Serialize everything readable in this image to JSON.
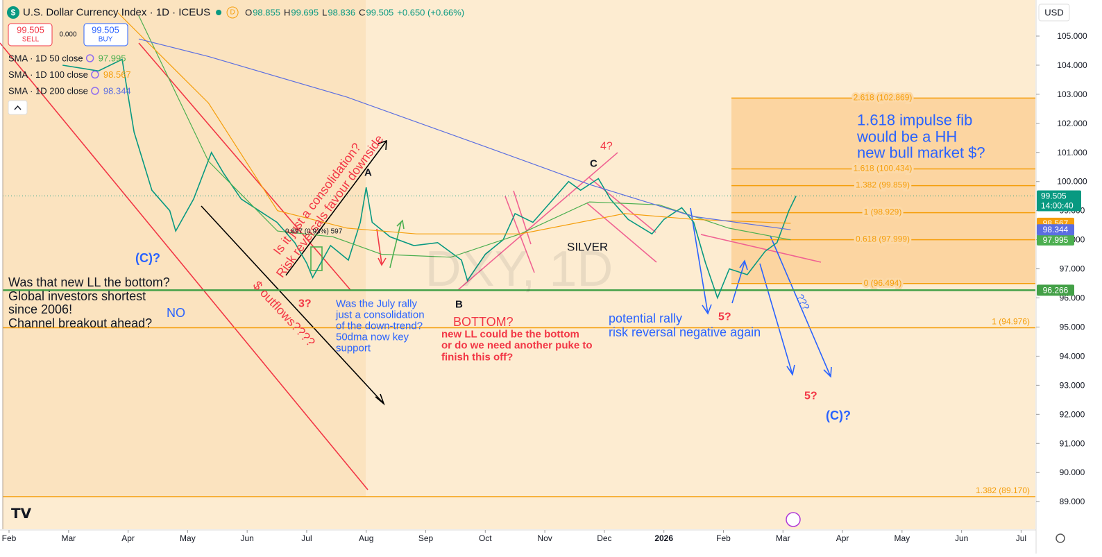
{
  "chart_data": {
    "type": "line",
    "title": "U.S. Dollar Currency Index · 1D · ICEUS",
    "interval_badge": "D",
    "ohlc": [
      {
        "label": "O",
        "value": 98.855
      },
      {
        "label": "H",
        "value": 99.695
      },
      {
        "label": "L",
        "value": 98.836
      },
      {
        "label": "C",
        "value": 99.505
      }
    ],
    "change": "+0.650 (+0.66%)",
    "trade": {
      "sell_price": 99.505,
      "sell": "SELL",
      "spread": "0.000",
      "buy_price": 99.505,
      "buy": "BUY"
    },
    "currency": "USD",
    "last_price": 99.505,
    "clock": "14:00:40",
    "support_level": 96.266,
    "watermark": "DXY, 1D",
    "series": [
      {
        "color": "#089981",
        "x": [
          0.9,
          1.5,
          1.9,
          2.1,
          2.4,
          2.7,
          2.8,
          3.1,
          3.4,
          3.6,
          3.9,
          4.2,
          4.5,
          4.8,
          5.0,
          5.1,
          5.4,
          5.7,
          5.9,
          6.0,
          6.1,
          6.4,
          6.8,
          7.2,
          7.6,
          7.7,
          8.0,
          8.3,
          8.5,
          8.8,
          9.1,
          9.4,
          9.6,
          9.9,
          10.1,
          10.4,
          10.8,
          11.0,
          11.3,
          11.5,
          11.7,
          11.9,
          12.1,
          12.4,
          12.7,
          12.9,
          13.1,
          13.22
        ],
        "values": [
          104.0,
          103.8,
          104.2,
          101.7,
          99.7,
          99.0,
          98.3,
          99.4,
          101.0,
          100.3,
          99.4,
          99.0,
          98.6,
          97.9,
          97.2,
          96.7,
          97.8,
          97.3,
          98.6,
          99.8,
          98.6,
          98.1,
          97.8,
          97.9,
          97.3,
          96.6,
          97.5,
          98.0,
          98.9,
          98.6,
          99.3,
          100.0,
          99.7,
          100.1,
          99.4,
          98.7,
          98.2,
          98.7,
          99.1,
          98.6,
          97.2,
          96.0,
          97.0,
          96.8,
          97.6,
          97.9,
          99.0,
          99.505
        ]
      },
      {
        "name": "SMA · 1D 50 close",
        "color": "#4caf50",
        "last": 97.995,
        "x": [
          2.18,
          3.35,
          4.51,
          5.44,
          6.26,
          7.42,
          8.59,
          9.75,
          10.92,
          12.09,
          13.13
        ],
        "values": [
          105.7,
          100.7,
          98.3,
          98.1,
          97.5,
          97.4,
          98.2,
          99.3,
          99.2,
          98.4,
          97.995
        ]
      },
      {
        "name": "SMA · 1D 100 close",
        "color": "#f59e0b",
        "last": 98.567,
        "x": [
          1.83,
          3.35,
          4.51,
          5.68,
          6.84,
          8.59,
          10.34,
          11.5,
          13.13
        ],
        "values": [
          105.8,
          102.7,
          99.0,
          98.4,
          98.2,
          98.2,
          98.9,
          98.7,
          98.567
        ]
      },
      {
        "name": "SMA · 1D 200 close",
        "color": "#5b6ee1",
        "last": 98.344,
        "x": [
          2.18,
          3.35,
          5.68,
          8.0,
          9.75,
          11.5,
          13.13
        ],
        "values": [
          104.9,
          104.3,
          102.9,
          101.2,
          99.9,
          98.8,
          98.344
        ]
      }
    ],
    "fib": [
      {
        "label": "2.618 (102.869)",
        "value": 102.869
      },
      {
        "label": "1.618 (100.434)",
        "value": 100.434
      },
      {
        "label": "1.382 (99.859)",
        "value": 99.859
      },
      {
        "label": "1 (98.929)",
        "value": 98.929
      },
      {
        "label": "0.618 (97.999)",
        "value": 97.999
      },
      {
        "label": "0 (96.494)",
        "value": 96.494
      }
    ],
    "extension_levels": [
      {
        "label": "1 (94.976)",
        "value": 94.976
      },
      {
        "label": "1.382 (89.170)",
        "value": 89.17
      }
    ],
    "ylim": [
      88.05,
      106.24
    ],
    "yticks": [
      {
        "value": 89,
        "label": "89.000"
      },
      {
        "value": 90,
        "label": "90.000"
      },
      {
        "value": 91,
        "label": "91.000"
      },
      {
        "value": 92,
        "label": "92.000"
      },
      {
        "value": 93,
        "label": "93.000"
      },
      {
        "value": 94,
        "label": "94.000"
      },
      {
        "value": 95,
        "label": "95.000"
      },
      {
        "value": 96,
        "label": "96.000"
      },
      {
        "value": 97,
        "label": "97.000"
      },
      {
        "value": 98,
        "label": "98.000"
      },
      {
        "value": 99,
        "label": "99.000"
      },
      {
        "value": 100,
        "label": "100.000"
      },
      {
        "value": 101,
        "label": "101.000"
      },
      {
        "value": 102,
        "label": "102.000"
      },
      {
        "value": 103,
        "label": "103.000"
      },
      {
        "value": 104,
        "label": "104.000"
      },
      {
        "value": 105,
        "label": "105.000"
      }
    ],
    "xlim": [
      -0.105,
      17.24
    ],
    "xticks": [
      {
        "value": 0,
        "label": "Feb"
      },
      {
        "value": 1,
        "label": "Mar"
      },
      {
        "value": 2,
        "label": "Apr"
      },
      {
        "value": 3,
        "label": "May"
      },
      {
        "value": 4,
        "label": "Jun"
      },
      {
        "value": 5,
        "label": "Jul"
      },
      {
        "value": 6,
        "label": "Aug"
      },
      {
        "value": 7,
        "label": "Sep"
      },
      {
        "value": 8,
        "label": "Oct"
      },
      {
        "value": 9,
        "label": "Nov"
      },
      {
        "value": 10,
        "label": "Dec"
      },
      {
        "value": 11,
        "label": "2026"
      },
      {
        "value": 12,
        "label": "Feb"
      },
      {
        "value": 13,
        "label": "Mar"
      },
      {
        "value": 14,
        "label": "Apr"
      },
      {
        "value": 15,
        "label": "May"
      },
      {
        "value": 16,
        "label": "Jun"
      },
      {
        "value": 17,
        "label": "Jul"
      }
    ],
    "annotations": [
      "(C)?",
      "Was that new LL the bottom?",
      "Global investors shortest",
      "since 2006!",
      "Channel breakout ahead?",
      "NO",
      "Is it just a consolidation?",
      "Risk reversals favour downside",
      "$ outflows????",
      "3?",
      "A",
      "0.897 (0.93%) 597",
      "B",
      "BOTTOM?",
      "new LL could be the bottom",
      "or do we need another puke to",
      "finish this off?",
      "Was the July rally",
      "just a consolidation",
      "of the down-trend?",
      "50dma now key",
      "support",
      "C",
      "4?",
      "SILVER",
      "potential rally",
      "risk reversal negative again",
      "5?",
      "???",
      "5?",
      "(C)?",
      "1.618 impulse fib",
      "would be a HH",
      "new bull market $?"
    ]
  }
}
